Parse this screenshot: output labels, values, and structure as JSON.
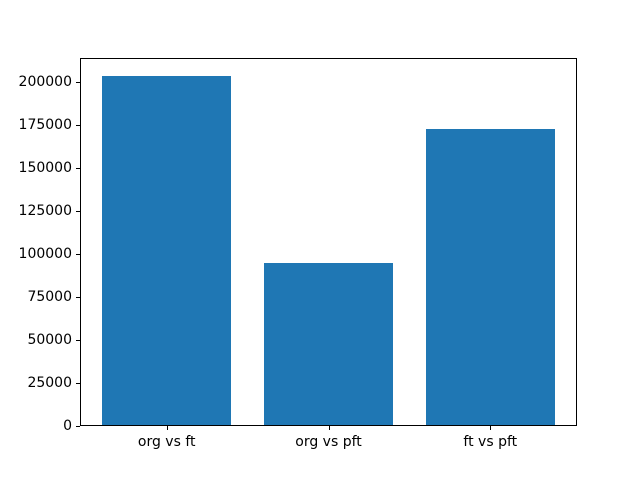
{
  "chart_data": {
    "type": "bar",
    "title": "",
    "xlabel": "",
    "ylabel": "",
    "categories": [
      "org vs ft",
      "org vs pft",
      "ft vs pft"
    ],
    "values": [
      204000,
      95000,
      173000
    ],
    "ylim": [
      0,
      214200
    ],
    "yticks": [
      0,
      25000,
      50000,
      75000,
      100000,
      125000,
      150000,
      175000,
      200000
    ],
    "bar_color": "#1f77b4",
    "axis_color": "#000000",
    "background_color": "#ffffff",
    "grid": false,
    "legend": false
  }
}
